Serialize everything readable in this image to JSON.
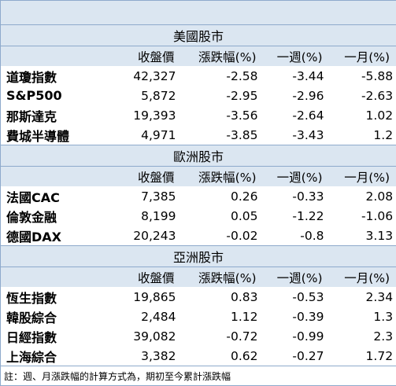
{
  "headers": [
    "",
    "收盤價",
    "漲跌幅(%)",
    "一週(%)",
    "一月(%)"
  ],
  "regions": [
    {
      "title": "美國股市",
      "rows": [
        {
          "name": "道瓊指數",
          "close": "42,327",
          "change": "-2.58",
          "week": "-3.44",
          "month": "-5.88"
        },
        {
          "name": "S&P500",
          "close": "5,872",
          "change": "-2.95",
          "week": "-2.96",
          "month": "-2.63"
        },
        {
          "name": "那斯達克",
          "close": "19,393",
          "change": "-3.56",
          "week": "-2.64",
          "month": "1.02"
        },
        {
          "name": "費城半導體",
          "close": "4,971",
          "change": "-3.85",
          "week": "-3.43",
          "month": "1.2"
        }
      ]
    },
    {
      "title": "歐洲股市",
      "rows": [
        {
          "name": "法國CAC",
          "close": "7,385",
          "change": "0.26",
          "week": "-0.33",
          "month": "2.08"
        },
        {
          "name": "倫敦金融",
          "close": "8,199",
          "change": "0.05",
          "week": "-1.22",
          "month": "-1.06"
        },
        {
          "name": "德國DAX",
          "close": "20,243",
          "change": "-0.02",
          "week": "-0.8",
          "month": "3.13"
        }
      ]
    },
    {
      "title": "亞洲股市",
      "rows": [
        {
          "name": "恆生指數",
          "close": "19,865",
          "change": "0.83",
          "week": "-0.53",
          "month": "2.34"
        },
        {
          "name": "韓股綜合",
          "close": "2,484",
          "change": "1.12",
          "week": "-0.39",
          "month": "1.3"
        },
        {
          "name": "日經指數",
          "close": "39,082",
          "change": "-0.72",
          "week": "-0.99",
          "month": "2.3"
        },
        {
          "name": "上海綜合",
          "close": "3,382",
          "change": "0.62",
          "week": "-0.27",
          "month": "1.72"
        }
      ]
    }
  ],
  "note": "註：週、月漲跌幅的計算方式為，期初至今累計漲跌幅"
}
